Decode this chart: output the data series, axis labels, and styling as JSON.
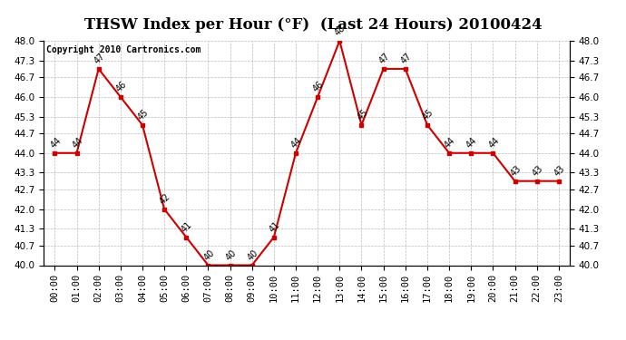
{
  "title": "THSW Index per Hour (°F)  (Last 24 Hours) 20100424",
  "copyright": "Copyright 2010 Cartronics.com",
  "hours": [
    "00:00",
    "01:00",
    "02:00",
    "03:00",
    "04:00",
    "05:00",
    "06:00",
    "07:00",
    "08:00",
    "09:00",
    "10:00",
    "11:00",
    "12:00",
    "13:00",
    "14:00",
    "15:00",
    "16:00",
    "17:00",
    "18:00",
    "19:00",
    "20:00",
    "21:00",
    "22:00",
    "23:00"
  ],
  "values": [
    44,
    44,
    47,
    46,
    45,
    42,
    41,
    40,
    40,
    40,
    41,
    44,
    46,
    48,
    45,
    47,
    47,
    45,
    44,
    44,
    44,
    43,
    43,
    43
  ],
  "ylim_min": 40.0,
  "ylim_max": 48.0,
  "yticks": [
    40.0,
    40.7,
    41.3,
    42.0,
    42.7,
    43.3,
    44.0,
    44.7,
    45.3,
    46.0,
    46.7,
    47.3,
    48.0
  ],
  "line_color": "#cc0000",
  "marker_color": "#cc0000",
  "bg_color": "#ffffff",
  "grid_color": "#bbbbbb",
  "title_fontsize": 12,
  "label_fontsize": 7.5,
  "copyright_fontsize": 7,
  "annot_fontsize": 7
}
